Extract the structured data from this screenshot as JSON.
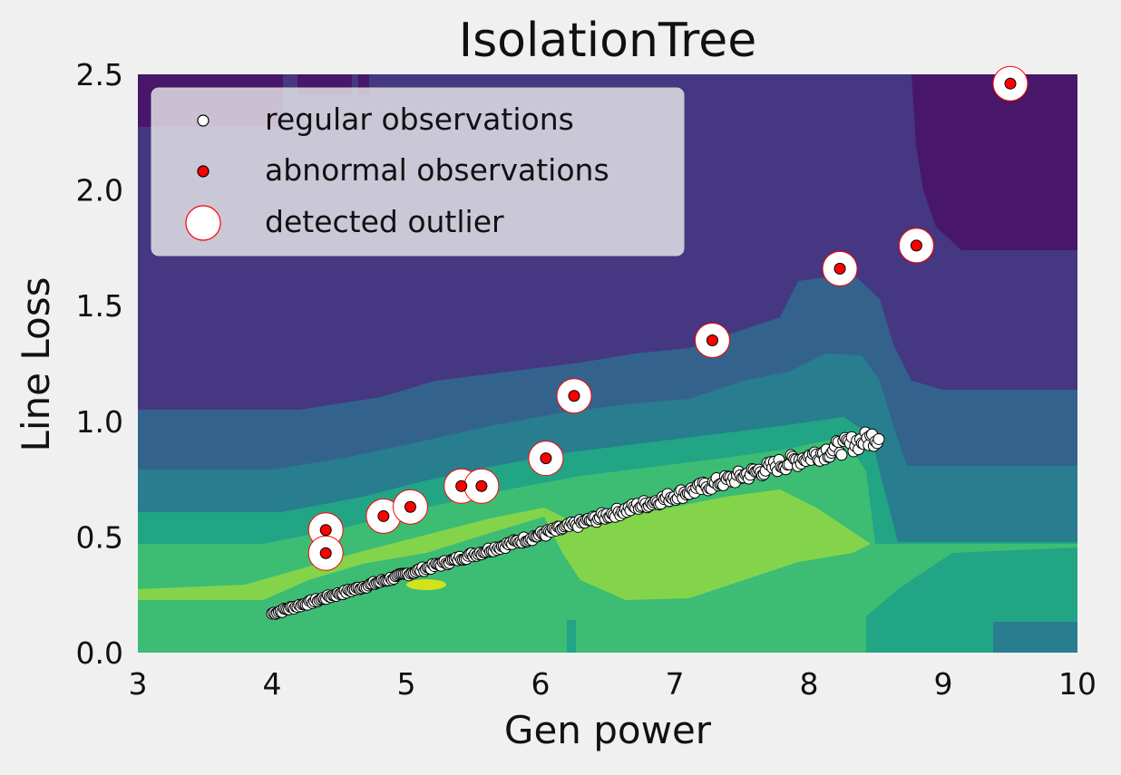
{
  "chart_data": {
    "type": "scatter",
    "title": "IsolationTree",
    "xlabel": "Gen  power",
    "ylabel": "Line  Loss",
    "xlim": [
      3,
      10
    ],
    "ylim": [
      0,
      2.5
    ],
    "xticks": [
      3,
      4,
      5,
      6,
      7,
      8,
      9,
      10
    ],
    "xtick_labels": [
      "3",
      "4",
      "5",
      "6",
      "7",
      "8",
      "9",
      "10"
    ],
    "yticks": [
      0,
      0.5,
      1.0,
      1.5,
      2.0,
      2.5
    ],
    "ytick_labels": [
      "0.0",
      "0.5",
      "1.0",
      "1.5",
      "2.0",
      "2.5"
    ],
    "grid": false,
    "legend_position": "top-left",
    "background": "decision-function contour (viridis colormap)",
    "colors": {
      "regular_fill": "#ffffff",
      "regular_edge": "#000000",
      "abnormal_fill": "#ff0000",
      "abnormal_edge": "#000000",
      "outlier_ring_fill": "#ffffff",
      "outlier_ring_edge": "#ff0000"
    },
    "series": [
      {
        "name": "regular observations",
        "marker": "circle-white",
        "trend": {
          "x_start": 4.0,
          "x_end": 8.52,
          "y_start": 0.17,
          "y_end": 0.94,
          "approx_points": 360
        }
      },
      {
        "name": "abnormal observations",
        "marker": "circle-red",
        "points": [
          {
            "x": 4.4,
            "y": 0.53
          },
          {
            "x": 4.4,
            "y": 0.43
          },
          {
            "x": 4.83,
            "y": 0.59
          },
          {
            "x": 5.03,
            "y": 0.63
          },
          {
            "x": 5.41,
            "y": 0.72
          },
          {
            "x": 5.56,
            "y": 0.72
          },
          {
            "x": 6.04,
            "y": 0.84
          },
          {
            "x": 6.25,
            "y": 1.11
          },
          {
            "x": 7.28,
            "y": 1.35
          },
          {
            "x": 8.23,
            "y": 1.66
          },
          {
            "x": 8.8,
            "y": 1.76
          },
          {
            "x": 9.5,
            "y": 2.46
          }
        ]
      },
      {
        "name": "detected outlier",
        "marker": "ring-red",
        "points": [
          {
            "x": 4.4,
            "y": 0.53
          },
          {
            "x": 4.4,
            "y": 0.43
          },
          {
            "x": 4.83,
            "y": 0.59
          },
          {
            "x": 5.03,
            "y": 0.63
          },
          {
            "x": 5.41,
            "y": 0.72
          },
          {
            "x": 5.56,
            "y": 0.72
          },
          {
            "x": 6.04,
            "y": 0.84
          },
          {
            "x": 6.25,
            "y": 1.11
          },
          {
            "x": 7.28,
            "y": 1.35
          },
          {
            "x": 8.23,
            "y": 1.66
          },
          {
            "x": 8.8,
            "y": 1.76
          },
          {
            "x": 9.5,
            "y": 2.46
          }
        ]
      }
    ]
  }
}
